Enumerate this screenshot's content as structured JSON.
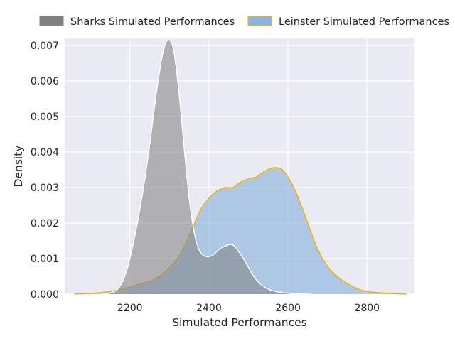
{
  "chart_data": {
    "type": "area",
    "title": "",
    "xlabel": "Simulated Performances",
    "ylabel": "Density",
    "xlim": [
      2035,
      2920
    ],
    "ylim": [
      0,
      0.0072
    ],
    "x_ticks": [
      2200,
      2400,
      2600,
      2800
    ],
    "y_ticks": [
      0.0,
      0.001,
      0.002,
      0.003,
      0.004,
      0.005,
      0.006,
      0.007
    ],
    "grid": true,
    "legend_position": "top",
    "series": [
      {
        "name": "Sharks Simulated Performances",
        "fill": "#808080",
        "edge": "#ffffff",
        "points": [
          [
            2130,
            0.0
          ],
          [
            2150,
            3e-05
          ],
          [
            2170,
            0.00015
          ],
          [
            2190,
            0.0006
          ],
          [
            2210,
            0.0015
          ],
          [
            2230,
            0.0027
          ],
          [
            2250,
            0.0042
          ],
          [
            2265,
            0.0055
          ],
          [
            2280,
            0.0066
          ],
          [
            2290,
            0.00705
          ],
          [
            2300,
            0.00715
          ],
          [
            2310,
            0.0069
          ],
          [
            2320,
            0.0061
          ],
          [
            2330,
            0.005
          ],
          [
            2340,
            0.0038
          ],
          [
            2350,
            0.0027
          ],
          [
            2360,
            0.0019
          ],
          [
            2370,
            0.0014
          ],
          [
            2380,
            0.00115
          ],
          [
            2395,
            0.00105
          ],
          [
            2410,
            0.0011
          ],
          [
            2425,
            0.00125
          ],
          [
            2440,
            0.00135
          ],
          [
            2455,
            0.0014
          ],
          [
            2465,
            0.00135
          ],
          [
            2475,
            0.0012
          ],
          [
            2490,
            0.00095
          ],
          [
            2505,
            0.00065
          ],
          [
            2520,
            0.0004
          ],
          [
            2540,
            0.0002
          ],
          [
            2560,
            0.0001
          ],
          [
            2580,
            5e-05
          ],
          [
            2620,
            1e-05
          ],
          [
            2660,
            0.0
          ]
        ]
      },
      {
        "name": "Leinster Simulated Performances",
        "fill": "#8eb4dc",
        "edge": "#f0b400",
        "points": [
          [
            2060,
            0.0
          ],
          [
            2100,
            2e-05
          ],
          [
            2140,
            6e-05
          ],
          [
            2170,
            0.00012
          ],
          [
            2200,
            0.0002
          ],
          [
            2230,
            0.0003
          ],
          [
            2260,
            0.0004
          ],
          [
            2280,
            0.00055
          ],
          [
            2300,
            0.00075
          ],
          [
            2320,
            0.001
          ],
          [
            2340,
            0.0014
          ],
          [
            2360,
            0.0019
          ],
          [
            2380,
            0.0024
          ],
          [
            2400,
            0.0027
          ],
          [
            2420,
            0.0029
          ],
          [
            2440,
            0.003
          ],
          [
            2460,
            0.003
          ],
          [
            2480,
            0.00315
          ],
          [
            2500,
            0.00325
          ],
          [
            2520,
            0.0033
          ],
          [
            2540,
            0.00345
          ],
          [
            2560,
            0.00355
          ],
          [
            2575,
            0.00355
          ],
          [
            2590,
            0.00345
          ],
          [
            2610,
            0.0031
          ],
          [
            2630,
            0.0026
          ],
          [
            2650,
            0.002
          ],
          [
            2670,
            0.0014
          ],
          [
            2690,
            0.00095
          ],
          [
            2710,
            0.00065
          ],
          [
            2730,
            0.00045
          ],
          [
            2750,
            0.0003
          ],
          [
            2770,
            0.00018
          ],
          [
            2790,
            0.0001
          ],
          [
            2820,
            5e-05
          ],
          [
            2860,
            2e-05
          ],
          [
            2900,
            0.0
          ]
        ]
      }
    ]
  }
}
